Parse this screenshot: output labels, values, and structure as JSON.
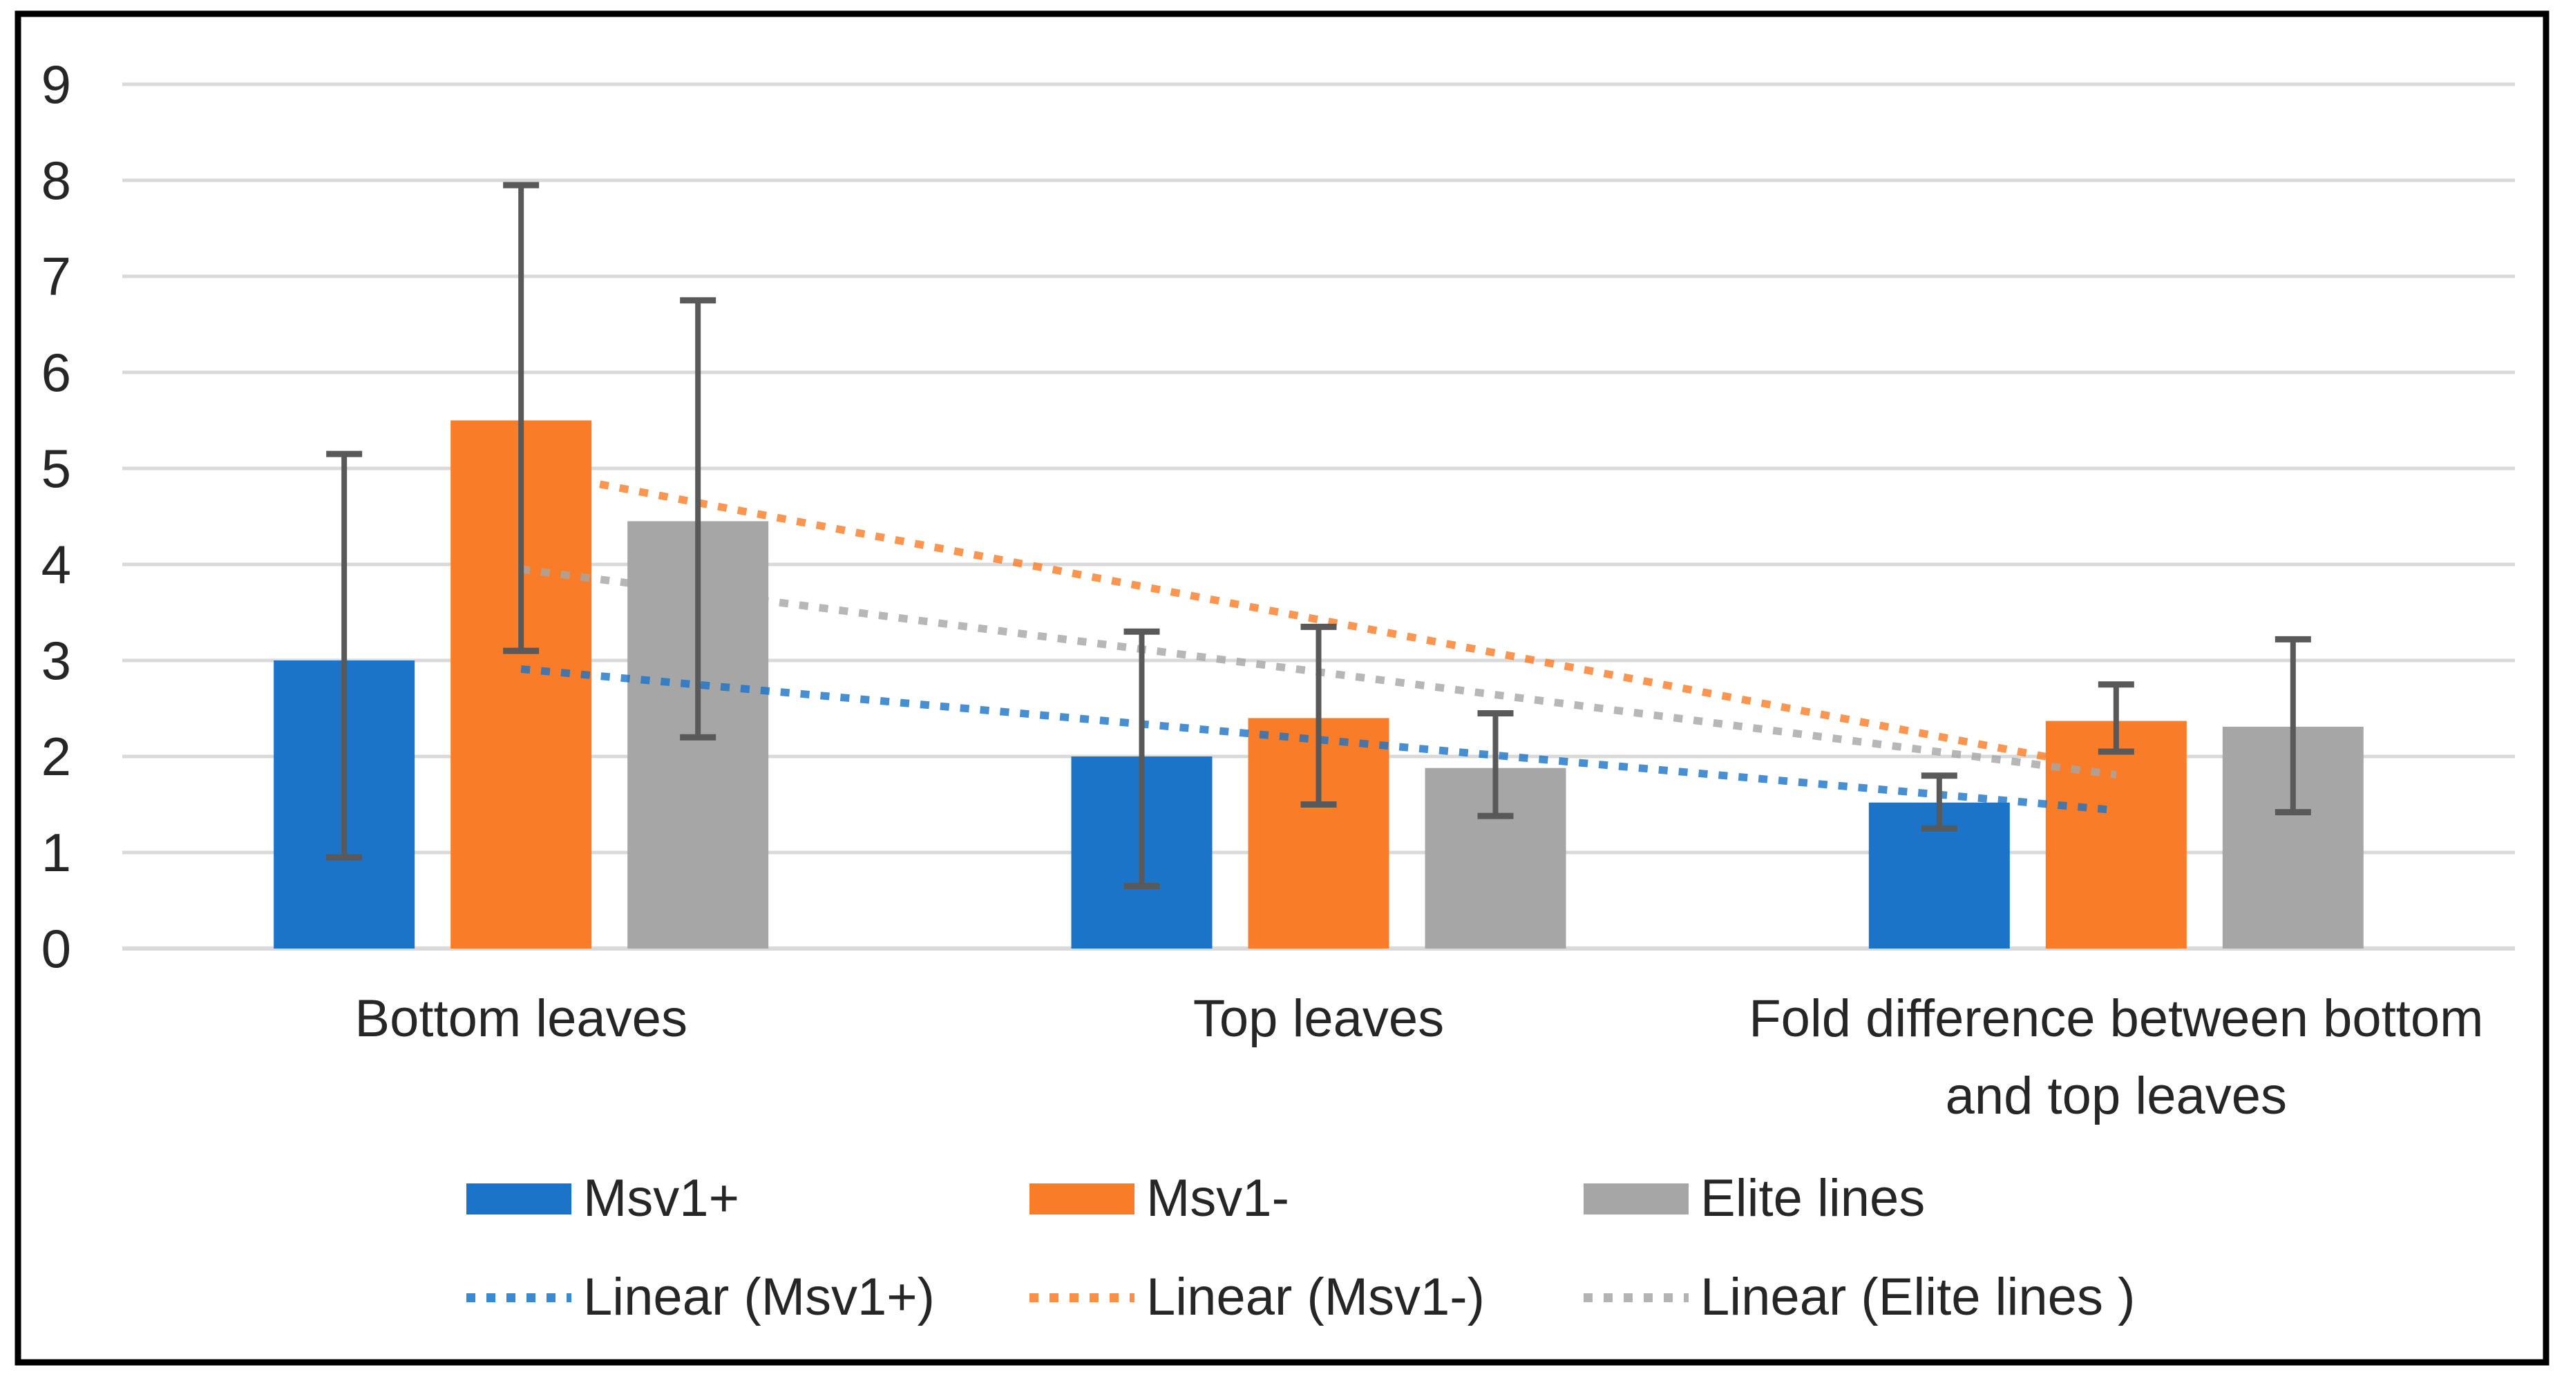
{
  "figure": {
    "background": "#ffffff",
    "border_color": "#000000"
  },
  "chart_data": {
    "type": "bar",
    "title": "",
    "xlabel": "",
    "ylabel": "",
    "categories": [
      "Bottom leaves",
      "Top leaves",
      "Fold difference between bottom and top leaves"
    ],
    "category_label_lines": [
      [
        "Bottom leaves"
      ],
      [
        "Top leaves"
      ],
      [
        "Fold difference between bottom",
        "and top leaves"
      ]
    ],
    "series": [
      {
        "name": "Msv1+",
        "color": "#1B74C8",
        "values": [
          3.0,
          2.0,
          1.52
        ],
        "error_low": [
          0.95,
          0.65,
          1.25
        ],
        "error_high": [
          5.15,
          3.3,
          1.8
        ]
      },
      {
        "name": "Msv1-",
        "color": "#F97D28",
        "values": [
          5.5,
          2.4,
          2.37
        ],
        "error_low": [
          3.1,
          1.5,
          2.05
        ],
        "error_high": [
          7.95,
          3.35,
          2.75
        ]
      },
      {
        "name": "Elite lines",
        "color": "#A6A6A6",
        "values": [
          4.45,
          1.88,
          2.31
        ],
        "error_low": [
          2.2,
          1.38,
          1.42
        ],
        "error_high": [
          6.75,
          2.45,
          3.22
        ]
      }
    ],
    "trendlines": [
      {
        "name": "Linear (Msv1+)",
        "series": "Msv1+",
        "color": "#1B74C8",
        "endpoints": [
          2.91,
          1.44
        ]
      },
      {
        "name": "Linear (Msv1-)",
        "series": "Msv1-",
        "color": "#F97D28",
        "endpoints": [
          4.99,
          1.86
        ]
      },
      {
        "name": "Linear (Elite lines )",
        "series": "Elite lines",
        "color": "#A6A6A6",
        "endpoints": [
          3.95,
          1.81
        ]
      }
    ],
    "ylim": [
      0,
      9
    ],
    "ytick_step": 1,
    "yticks": [
      "0",
      "1",
      "2",
      "3",
      "4",
      "5",
      "6",
      "7",
      "8",
      "9"
    ],
    "grid": "horizontal",
    "gridline_color": "#D9D9D9",
    "error_bar_color": "#595959",
    "text_color": "#262626",
    "legend_position": "bottom"
  }
}
